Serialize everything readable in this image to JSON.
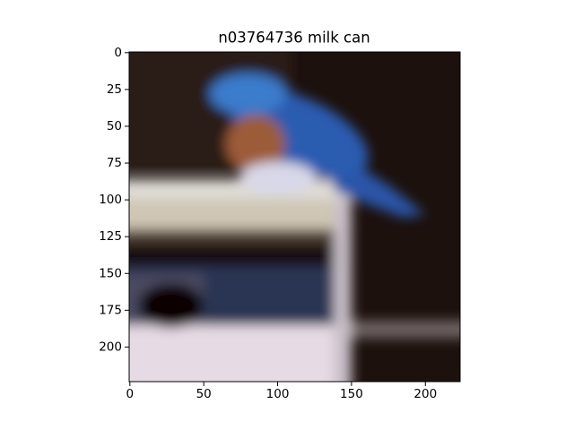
{
  "chart_data": {
    "type": "image",
    "title": "n03764736 milk can",
    "xlim": [
      -0.5,
      223.5
    ],
    "ylim": [
      223.5,
      -0.5
    ],
    "xticks": [
      0,
      50,
      100,
      150,
      200
    ],
    "yticks": [
      0,
      25,
      50,
      75,
      100,
      125,
      150,
      175,
      200
    ]
  }
}
